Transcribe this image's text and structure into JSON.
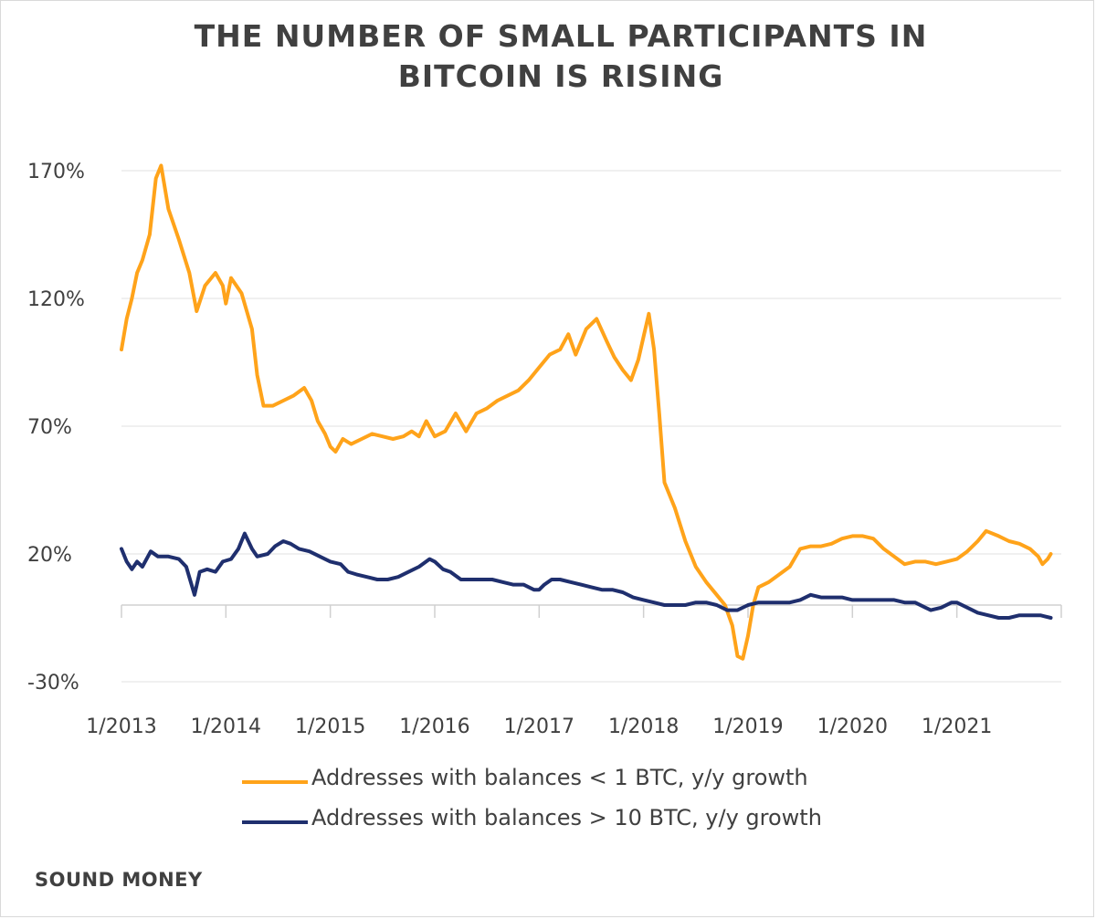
{
  "title_lines": [
    "THE NUMBER OF SMALL PARTICIPANTS IN",
    "BITCOIN IS RISING"
  ],
  "source": "SOUND MONEY",
  "colors": {
    "small": "#FFA31A",
    "large": "#1F2F6E",
    "grid": "#ececec",
    "axis": "#d0d0d0"
  },
  "chart_data": {
    "type": "line",
    "title": "THE NUMBER OF SMALL PARTICIPANTS IN BITCOIN IS RISING",
    "xlabel": "",
    "ylabel": "",
    "x_ticks": [
      "1/2013",
      "1/2014",
      "1/2015",
      "1/2016",
      "1/2017",
      "1/2018",
      "1/2019",
      "1/2020",
      "1/2021"
    ],
    "y_ticks": [
      "170%",
      "120%",
      "70%",
      "20%",
      "-30%"
    ],
    "ylim": [
      -30,
      175
    ],
    "xlim": [
      2013.0,
      2021.9
    ],
    "grid": "horizontal",
    "legend_position": "bottom",
    "series": [
      {
        "name": "Addresses with balances < 1 BTC, y/y growth",
        "color": "#FFA31A",
        "points": [
          [
            2013.0,
            100
          ],
          [
            2013.05,
            112
          ],
          [
            2013.1,
            120
          ],
          [
            2013.15,
            130
          ],
          [
            2013.2,
            135
          ],
          [
            2013.27,
            145
          ],
          [
            2013.33,
            167
          ],
          [
            2013.38,
            172
          ],
          [
            2013.45,
            155
          ],
          [
            2013.55,
            143
          ],
          [
            2013.65,
            130
          ],
          [
            2013.72,
            115
          ],
          [
            2013.8,
            125
          ],
          [
            2013.9,
            130
          ],
          [
            2013.97,
            125
          ],
          [
            2014.0,
            118
          ],
          [
            2014.05,
            128
          ],
          [
            2014.1,
            125
          ],
          [
            2014.15,
            122
          ],
          [
            2014.2,
            115
          ],
          [
            2014.25,
            108
          ],
          [
            2014.3,
            90
          ],
          [
            2014.36,
            78
          ],
          [
            2014.45,
            78
          ],
          [
            2014.55,
            80
          ],
          [
            2014.65,
            82
          ],
          [
            2014.75,
            85
          ],
          [
            2014.82,
            80
          ],
          [
            2014.88,
            72
          ],
          [
            2014.95,
            67
          ],
          [
            2015.0,
            62
          ],
          [
            2015.05,
            60
          ],
          [
            2015.12,
            65
          ],
          [
            2015.2,
            63
          ],
          [
            2015.3,
            65
          ],
          [
            2015.4,
            67
          ],
          [
            2015.5,
            66
          ],
          [
            2015.6,
            65
          ],
          [
            2015.7,
            66
          ],
          [
            2015.78,
            68
          ],
          [
            2015.85,
            66
          ],
          [
            2015.92,
            72
          ],
          [
            2016.0,
            66
          ],
          [
            2016.1,
            68
          ],
          [
            2016.2,
            75
          ],
          [
            2016.3,
            68
          ],
          [
            2016.4,
            75
          ],
          [
            2016.5,
            77
          ],
          [
            2016.6,
            80
          ],
          [
            2016.7,
            82
          ],
          [
            2016.8,
            84
          ],
          [
            2016.9,
            88
          ],
          [
            2017.0,
            93
          ],
          [
            2017.1,
            98
          ],
          [
            2017.2,
            100
          ],
          [
            2017.28,
            106
          ],
          [
            2017.35,
            98
          ],
          [
            2017.45,
            108
          ],
          [
            2017.55,
            112
          ],
          [
            2017.65,
            103
          ],
          [
            2017.72,
            97
          ],
          [
            2017.8,
            92
          ],
          [
            2017.88,
            88
          ],
          [
            2017.95,
            96
          ],
          [
            2018.0,
            105
          ],
          [
            2018.05,
            114
          ],
          [
            2018.1,
            100
          ],
          [
            2018.15,
            75
          ],
          [
            2018.2,
            48
          ],
          [
            2018.3,
            38
          ],
          [
            2018.4,
            25
          ],
          [
            2018.5,
            15
          ],
          [
            2018.6,
            9
          ],
          [
            2018.7,
            4
          ],
          [
            2018.78,
            0
          ],
          [
            2018.85,
            -8
          ],
          [
            2018.9,
            -20
          ],
          [
            2018.95,
            -21
          ],
          [
            2019.0,
            -12
          ],
          [
            2019.05,
            0
          ],
          [
            2019.1,
            7
          ],
          [
            2019.2,
            9
          ],
          [
            2019.3,
            12
          ],
          [
            2019.4,
            15
          ],
          [
            2019.5,
            22
          ],
          [
            2019.6,
            23
          ],
          [
            2019.7,
            23
          ],
          [
            2019.8,
            24
          ],
          [
            2019.9,
            26
          ],
          [
            2020.0,
            27
          ],
          [
            2020.1,
            27
          ],
          [
            2020.2,
            26
          ],
          [
            2020.3,
            22
          ],
          [
            2020.4,
            19
          ],
          [
            2020.5,
            16
          ],
          [
            2020.6,
            17
          ],
          [
            2020.7,
            17
          ],
          [
            2020.8,
            16
          ],
          [
            2020.9,
            17
          ],
          [
            2021.0,
            18
          ],
          [
            2021.1,
            21
          ],
          [
            2021.2,
            25
          ],
          [
            2021.28,
            29
          ],
          [
            2021.4,
            27
          ],
          [
            2021.5,
            25
          ],
          [
            2021.6,
            24
          ],
          [
            2021.7,
            22
          ],
          [
            2021.78,
            19
          ],
          [
            2021.82,
            16
          ],
          [
            2021.87,
            18
          ],
          [
            2021.9,
            20
          ]
        ]
      },
      {
        "name": "Addresses with balances > 10 BTC, y/y growth",
        "color": "#1F2F6E",
        "points": [
          [
            2013.0,
            22
          ],
          [
            2013.05,
            17
          ],
          [
            2013.1,
            14
          ],
          [
            2013.15,
            17
          ],
          [
            2013.2,
            15
          ],
          [
            2013.28,
            21
          ],
          [
            2013.35,
            19
          ],
          [
            2013.45,
            19
          ],
          [
            2013.55,
            18
          ],
          [
            2013.62,
            15
          ],
          [
            2013.7,
            4
          ],
          [
            2013.75,
            13
          ],
          [
            2013.82,
            14
          ],
          [
            2013.9,
            13
          ],
          [
            2013.97,
            17
          ],
          [
            2014.05,
            18
          ],
          [
            2014.12,
            22
          ],
          [
            2014.18,
            28
          ],
          [
            2014.25,
            22
          ],
          [
            2014.3,
            19
          ],
          [
            2014.4,
            20
          ],
          [
            2014.47,
            23
          ],
          [
            2014.55,
            25
          ],
          [
            2014.62,
            24
          ],
          [
            2014.7,
            22
          ],
          [
            2014.8,
            21
          ],
          [
            2014.9,
            19
          ],
          [
            2015.0,
            17
          ],
          [
            2015.1,
            16
          ],
          [
            2015.17,
            13
          ],
          [
            2015.25,
            12
          ],
          [
            2015.35,
            11
          ],
          [
            2015.45,
            10
          ],
          [
            2015.55,
            10
          ],
          [
            2015.65,
            11
          ],
          [
            2015.75,
            13
          ],
          [
            2015.85,
            15
          ],
          [
            2015.95,
            18
          ],
          [
            2016.0,
            17
          ],
          [
            2016.08,
            14
          ],
          [
            2016.15,
            13
          ],
          [
            2016.25,
            10
          ],
          [
            2016.35,
            10
          ],
          [
            2016.45,
            10
          ],
          [
            2016.55,
            10
          ],
          [
            2016.65,
            9
          ],
          [
            2016.75,
            8
          ],
          [
            2016.85,
            8
          ],
          [
            2016.95,
            6
          ],
          [
            2017.0,
            6
          ],
          [
            2017.05,
            8
          ],
          [
            2017.12,
            10
          ],
          [
            2017.2,
            10
          ],
          [
            2017.3,
            9
          ],
          [
            2017.4,
            8
          ],
          [
            2017.5,
            7
          ],
          [
            2017.6,
            6
          ],
          [
            2017.7,
            6
          ],
          [
            2017.8,
            5
          ],
          [
            2017.9,
            3
          ],
          [
            2018.0,
            2
          ],
          [
            2018.1,
            1
          ],
          [
            2018.2,
            0
          ],
          [
            2018.3,
            0
          ],
          [
            2018.4,
            0
          ],
          [
            2018.5,
            1
          ],
          [
            2018.6,
            1
          ],
          [
            2018.7,
            0
          ],
          [
            2018.8,
            -2
          ],
          [
            2018.9,
            -2
          ],
          [
            2019.0,
            0
          ],
          [
            2019.1,
            1
          ],
          [
            2019.2,
            1
          ],
          [
            2019.3,
            1
          ],
          [
            2019.4,
            1
          ],
          [
            2019.5,
            2
          ],
          [
            2019.6,
            4
          ],
          [
            2019.7,
            3
          ],
          [
            2019.8,
            3
          ],
          [
            2019.9,
            3
          ],
          [
            2020.0,
            2
          ],
          [
            2020.1,
            2
          ],
          [
            2020.2,
            2
          ],
          [
            2020.3,
            2
          ],
          [
            2020.4,
            2
          ],
          [
            2020.5,
            1
          ],
          [
            2020.6,
            1
          ],
          [
            2020.7,
            -1
          ],
          [
            2020.75,
            -2
          ],
          [
            2020.85,
            -1
          ],
          [
            2020.95,
            1
          ],
          [
            2021.0,
            1
          ],
          [
            2021.1,
            -1
          ],
          [
            2021.2,
            -3
          ],
          [
            2021.3,
            -4
          ],
          [
            2021.4,
            -5
          ],
          [
            2021.5,
            -5
          ],
          [
            2021.6,
            -4
          ],
          [
            2021.7,
            -4
          ],
          [
            2021.8,
            -4
          ],
          [
            2021.9,
            -5
          ]
        ]
      }
    ]
  }
}
